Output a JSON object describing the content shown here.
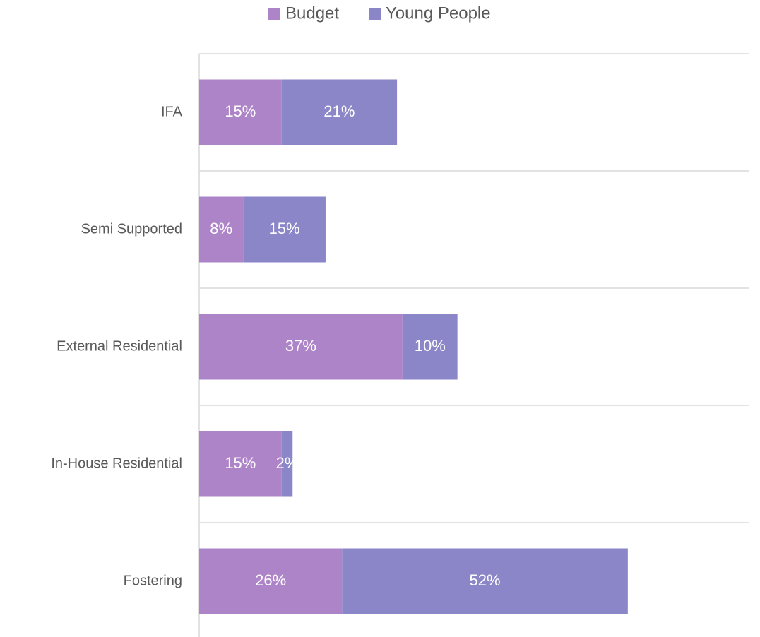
{
  "chart_data": {
    "type": "stacked_bar_horizontal",
    "categories": [
      "IFA",
      "Semi Supported",
      "External Residential",
      "In-House Residential",
      "Fostering"
    ],
    "series": [
      {
        "name": "Budget",
        "color": "#ae84c8",
        "values": [
          15,
          8,
          37,
          15,
          26
        ],
        "value_labels": [
          "15%",
          "8%",
          "37%",
          "15%",
          "26%"
        ]
      },
      {
        "name": "Young People",
        "color": "#8a86c8",
        "values": [
          21,
          15,
          10,
          2,
          52
        ],
        "value_labels": [
          "21%",
          "15%",
          "10%",
          "2%",
          "52%"
        ]
      }
    ],
    "xlim": [
      0,
      100
    ],
    "grid": true,
    "legend": "top"
  }
}
